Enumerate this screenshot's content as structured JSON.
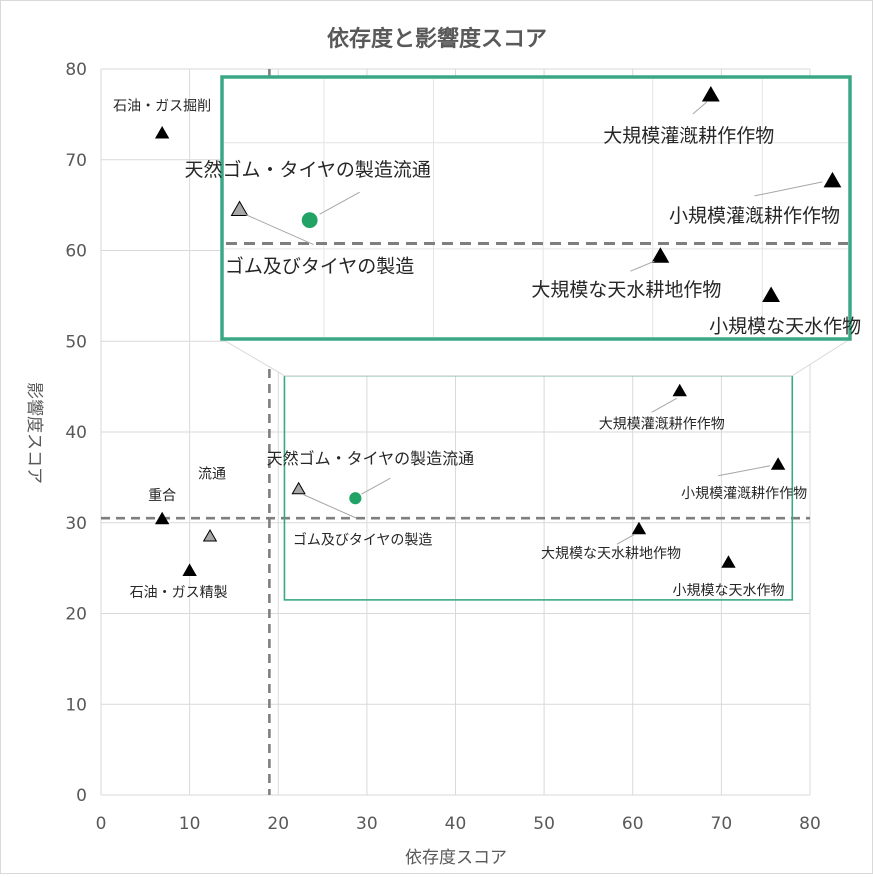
{
  "chart_data": {
    "type": "scatter",
    "title": "依存度と影響度スコア",
    "xlabel": "依存度スコア",
    "ylabel": "影響度スコア",
    "xlim": [
      0,
      80
    ],
    "ylim": [
      0,
      80
    ],
    "xticks": [
      0,
      10,
      20,
      30,
      40,
      50,
      60,
      70,
      80
    ],
    "yticks": [
      0,
      10,
      20,
      30,
      40,
      50,
      60,
      70,
      80
    ],
    "grid": true,
    "reference_lines": {
      "x": 19,
      "y": 30.5
    },
    "colors": {
      "black_marker": "#000000",
      "gray_marker": "#a6a6a6",
      "highlight": "#21a366",
      "zoom_box": "#3aa886",
      "ref_line": "#7f7f7f"
    },
    "points": [
      {
        "label": "石油・ガス掘削",
        "x": 6.9,
        "y": 73,
        "marker": "black-triangle"
      },
      {
        "label": "重合",
        "x": 6.9,
        "y": 30.5,
        "marker": "black-triangle"
      },
      {
        "label": "石油・ガス精製",
        "x": 10,
        "y": 24.8,
        "marker": "black-triangle"
      },
      {
        "label": "流通",
        "x": 12.3,
        "y": 28.6,
        "marker": "gray-triangle"
      },
      {
        "label": "ゴム及びタイヤの製造",
        "x": 22.3,
        "y": 33.8,
        "marker": "gray-triangle"
      },
      {
        "label": "天然ゴム・タイヤの製造流通",
        "x": 28.7,
        "y": 32.7,
        "marker": "green-circle"
      },
      {
        "label": "大規模灌漑耕作作物",
        "x": 65.3,
        "y": 44.6,
        "marker": "black-triangle"
      },
      {
        "label": "小規模灌漑耕作作物",
        "x": 76.4,
        "y": 36.5,
        "marker": "black-triangle"
      },
      {
        "label": "大規模な天水耕地作物",
        "x": 60.7,
        "y": 29.4,
        "marker": "black-triangle"
      },
      {
        "label": "小規模な天水作物",
        "x": 70.8,
        "y": 25.7,
        "marker": "black-triangle"
      }
    ],
    "zoom_region": {
      "x_range": [
        20.7,
        78
      ],
      "y_range": [
        21.5,
        46.2
      ]
    }
  }
}
